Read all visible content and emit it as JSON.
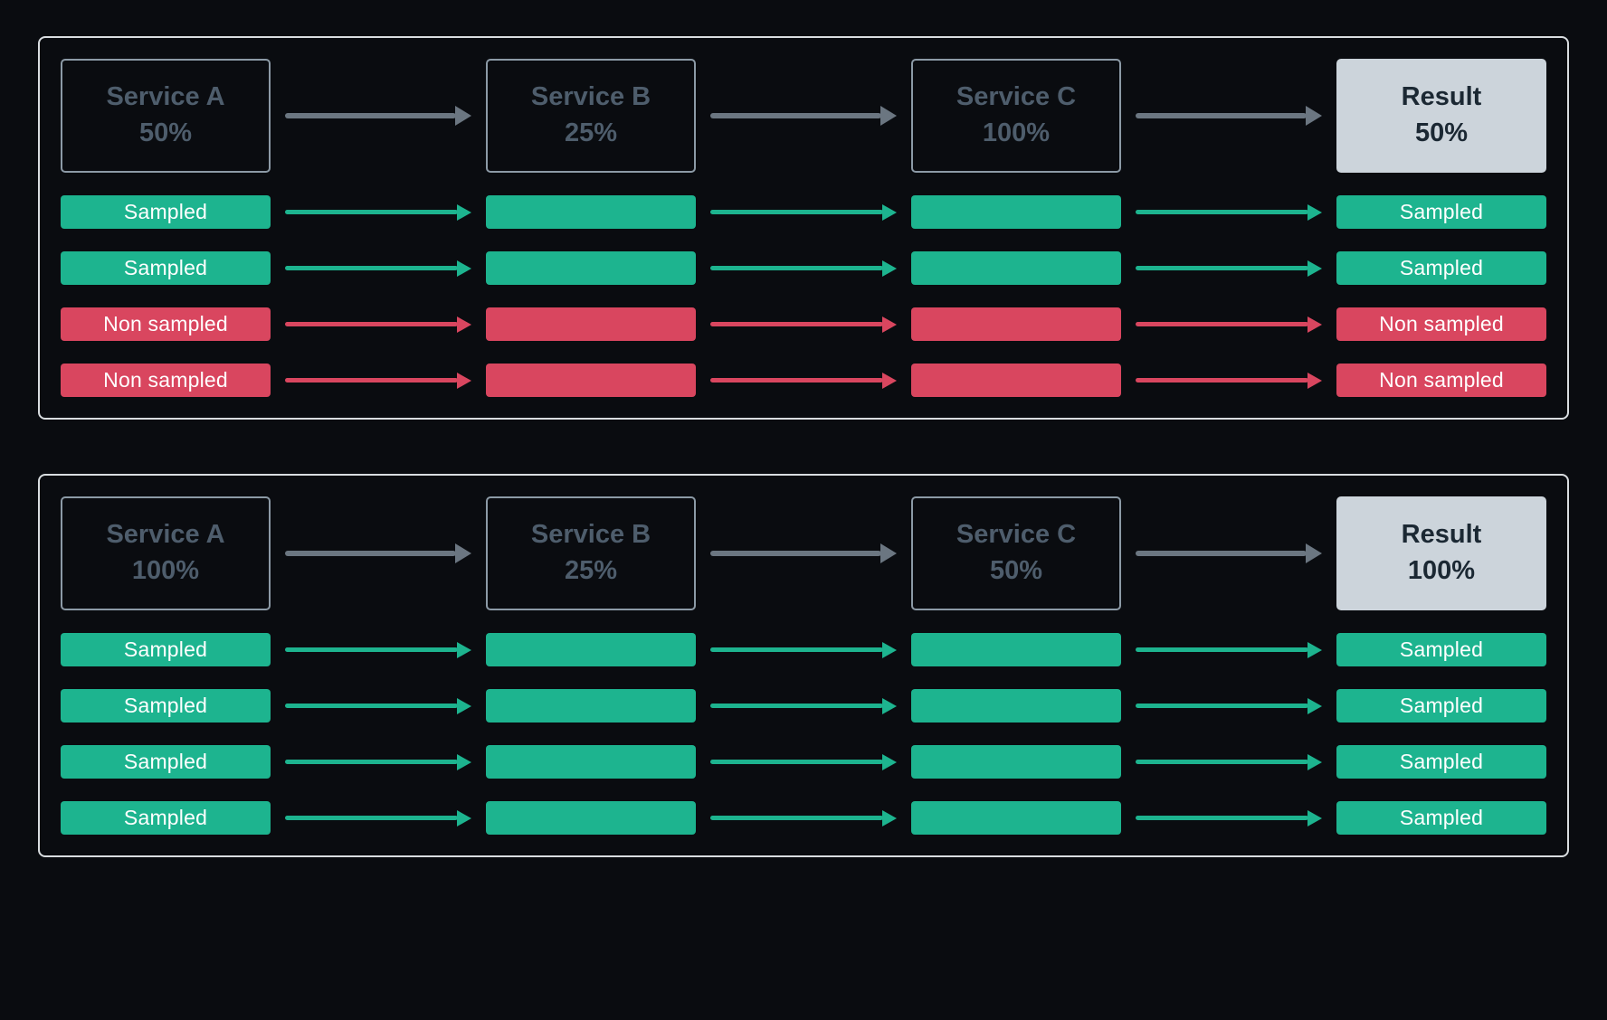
{
  "colors": {
    "background": "#0a0c10",
    "panel-border": "#d9dde0",
    "service-border": "#8c9aa6",
    "service-text": "#4e5d6c",
    "result-bg": "#ccd4db",
    "result-text": "#1b2833",
    "sampled": "#1db48f",
    "non-sampled": "#d9465f",
    "arrow-gray": "#6b7681",
    "pill-text": "#ffffff"
  },
  "panels": [
    {
      "services": [
        {
          "name": "Service A",
          "rate": "50%"
        },
        {
          "name": "Service B",
          "rate": "25%"
        },
        {
          "name": "Service C",
          "rate": "100%"
        },
        {
          "name": "Result",
          "rate": "50%"
        }
      ],
      "traces": [
        {
          "label": "Sampled",
          "status": "sampled"
        },
        {
          "label": "Sampled",
          "status": "sampled"
        },
        {
          "label": "Non sampled",
          "status": "non-sampled"
        },
        {
          "label": "Non sampled",
          "status": "non-sampled"
        }
      ]
    },
    {
      "services": [
        {
          "name": "Service A",
          "rate": "100%"
        },
        {
          "name": "Service B",
          "rate": "25%"
        },
        {
          "name": "Service C",
          "rate": "50%"
        },
        {
          "name": "Result",
          "rate": "100%"
        }
      ],
      "traces": [
        {
          "label": "Sampled",
          "status": "sampled"
        },
        {
          "label": "Sampled",
          "status": "sampled"
        },
        {
          "label": "Sampled",
          "status": "sampled"
        },
        {
          "label": "Sampled",
          "status": "sampled"
        }
      ]
    }
  ]
}
